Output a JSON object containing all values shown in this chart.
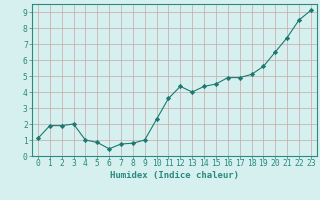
{
  "x": [
    0,
    1,
    2,
    3,
    4,
    5,
    6,
    7,
    8,
    9,
    10,
    11,
    12,
    13,
    14,
    15,
    16,
    17,
    18,
    19,
    20,
    21,
    22,
    23
  ],
  "y": [
    1.1,
    1.9,
    1.9,
    2.0,
    1.0,
    0.85,
    0.45,
    0.75,
    0.8,
    1.0,
    2.3,
    3.6,
    4.35,
    4.0,
    4.35,
    4.5,
    4.9,
    4.9,
    5.1,
    5.6,
    6.5,
    7.4,
    8.5,
    9.1
  ],
  "xlabel": "Humidex (Indice chaleur)",
  "line_color": "#1a7a6e",
  "marker": "D",
  "marker_size": 2.2,
  "bg_color": "#d6f0f0",
  "grid_color": "#c9a8a8",
  "xlim": [
    -0.5,
    23.5
  ],
  "ylim": [
    0,
    9.5
  ],
  "yticks": [
    0,
    1,
    2,
    3,
    4,
    5,
    6,
    7,
    8,
    9
  ],
  "xticks": [
    0,
    1,
    2,
    3,
    4,
    5,
    6,
    7,
    8,
    9,
    10,
    11,
    12,
    13,
    14,
    15,
    16,
    17,
    18,
    19,
    20,
    21,
    22,
    23
  ],
  "axis_color": "#2a8a7e",
  "tick_color": "#2a8a7e",
  "label_fontsize": 6.5,
  "tick_fontsize": 5.8,
  "linewidth": 0.8
}
